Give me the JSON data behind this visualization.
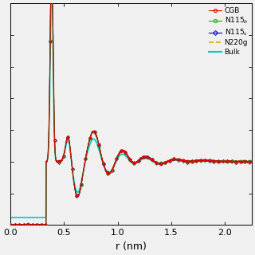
{
  "title": "",
  "xlabel": "r (nm)",
  "ylabel": "",
  "xlim": [
    0,
    2.25
  ],
  "ylim": [
    0,
    3.5
  ],
  "background_color": "#f0f0f0",
  "series": {
    "CGB": {
      "color": "#dd0000",
      "marker": "o",
      "linestyle": "-",
      "lw": 0.7,
      "ms": 2.2,
      "zorder": 5
    },
    "N115b": {
      "color": "#00bb00",
      "marker": "o",
      "linestyle": "-",
      "lw": 0.7,
      "ms": 2.2,
      "zorder": 4
    },
    "N115s": {
      "color": "#0000bb",
      "marker": "D",
      "linestyle": "-",
      "lw": 0.7,
      "ms": 2.0,
      "zorder": 3
    },
    "N220g": {
      "color": "#ddaa00",
      "marker": "",
      "linestyle": "--",
      "lw": 1.0,
      "ms": 0,
      "zorder": 2
    },
    "Bulk": {
      "color": "#00cccc",
      "marker": "",
      "linestyle": "-",
      "lw": 1.2,
      "ms": 0,
      "zorder": 1
    }
  },
  "legend_labels": [
    "CGB",
    "N115$_b$",
    "N115$_s$",
    "N220g",
    "Bulk"
  ],
  "legend_loc": "upper right",
  "xticks": [
    0,
    0.5,
    1.0,
    1.5,
    2.0
  ],
  "ytick_positions": [
    0.5,
    1.0,
    1.5,
    2.0,
    2.5,
    3.0,
    3.5
  ]
}
